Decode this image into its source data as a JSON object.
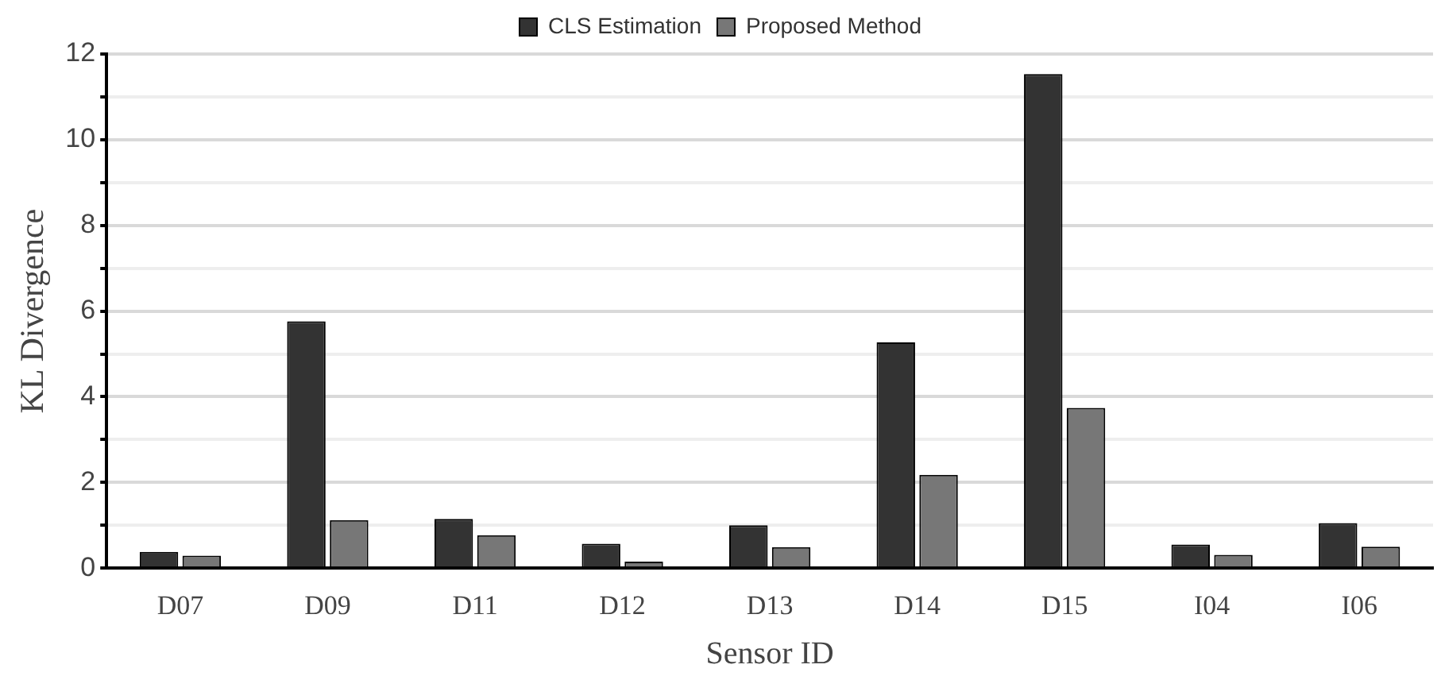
{
  "chart_data": {
    "type": "bar",
    "xlabel": "Sensor ID",
    "ylabel": "KL Divergence",
    "categories": [
      "D07",
      "D09",
      "D11",
      "D12",
      "D13",
      "D14",
      "D15",
      "I04",
      "I06"
    ],
    "series": [
      {
        "name": "CLS Estimation",
        "color": "#333333",
        "values": [
          0.38,
          5.76,
          1.15,
          0.57,
          1.0,
          5.27,
          11.53,
          0.55,
          1.05
        ]
      },
      {
        "name": "Proposed Method",
        "color": "#777777",
        "values": [
          0.29,
          1.12,
          0.77,
          0.15,
          0.49,
          2.18,
          3.74,
          0.31,
          0.5
        ]
      }
    ],
    "ylim": [
      0,
      12
    ],
    "yticks": [
      0,
      {
        "value": 1,
        "label": null
      },
      2,
      {
        "value": 3,
        "label": null
      },
      4,
      {
        "value": 5,
        "label": null
      },
      6,
      {
        "value": 7,
        "label": null
      },
      8,
      {
        "value": 9,
        "label": null
      },
      10,
      {
        "value": 11,
        "label": null
      },
      12
    ],
    "grid": "y",
    "legend": "top"
  }
}
